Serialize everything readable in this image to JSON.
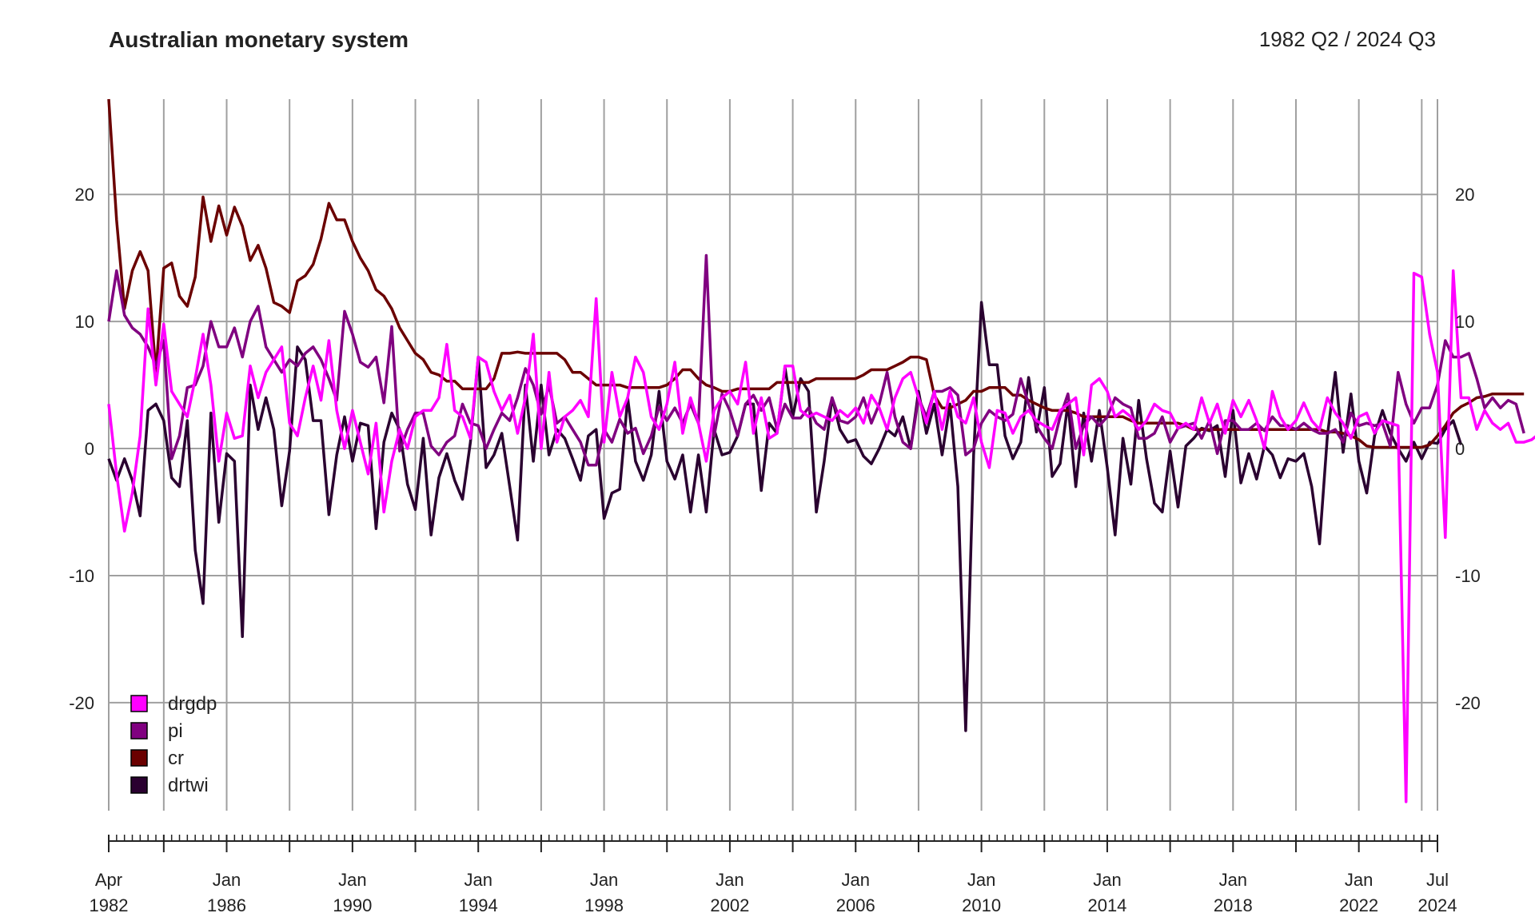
{
  "header": {
    "title": "Australian monetary system",
    "period": "1982 Q2 / 2024 Q3"
  },
  "chart_data": {
    "type": "line",
    "title": "Australian monetary system",
    "subtitle": "1982 Q2 / 2024 Q3",
    "frequency": "quarterly",
    "start": "1982-04",
    "end": "2024-07",
    "ylim": [
      -28.5,
      27.5
    ],
    "yticks": [
      -20,
      -10,
      0,
      10,
      20
    ],
    "y_axis_both_sides": true,
    "grid": true,
    "legend_position": "bottom-left",
    "x_tick_labels": [
      {
        "month": "Apr",
        "year": "1982",
        "date": "1982-04"
      },
      {
        "month": "Jan",
        "year": "1986",
        "date": "1986-01"
      },
      {
        "month": "Jan",
        "year": "1990",
        "date": "1990-01"
      },
      {
        "month": "Jan",
        "year": "1994",
        "date": "1994-01"
      },
      {
        "month": "Jan",
        "year": "1998",
        "date": "1998-01"
      },
      {
        "month": "Jan",
        "year": "2002",
        "date": "2002-01"
      },
      {
        "month": "Jan",
        "year": "2006",
        "date": "2006-01"
      },
      {
        "month": "Jan",
        "year": "2010",
        "date": "2010-01"
      },
      {
        "month": "Jan",
        "year": "2014",
        "date": "2014-01"
      },
      {
        "month": "Jan",
        "year": "2018",
        "date": "2018-01"
      },
      {
        "month": "Jan",
        "year": "2022",
        "date": "2022-01"
      },
      {
        "month": "Jul",
        "year": "2024",
        "date": "2024-07"
      }
    ],
    "series": [
      {
        "name": "drgdp",
        "color": "#ff00ff",
        "values": [
          3.5,
          -2,
          -6.5,
          -3.5,
          1,
          11,
          5,
          9.8,
          4.5,
          3.5,
          2.5,
          5.5,
          9,
          5,
          -1,
          2.8,
          0.8,
          1,
          6.5,
          4,
          6,
          7,
          8,
          2,
          1,
          4,
          6.5,
          3.8,
          8.5,
          3,
          0,
          3,
          0.5,
          -2,
          2,
          -5,
          -1,
          1.5,
          0,
          2.5,
          3,
          3,
          4,
          8.2,
          3,
          2.5,
          0.8,
          7.2,
          6.8,
          4.5,
          3,
          4.2,
          1.2,
          4,
          9,
          0,
          6,
          0.5,
          2.5,
          3,
          3.8,
          2.5,
          11.8,
          0.5,
          6,
          2.5,
          4,
          7.2,
          6,
          2.5,
          1.5,
          3.5,
          6.8,
          1.2,
          4,
          2,
          -1,
          3,
          4,
          4.5,
          3.5,
          6.8,
          1.2,
          4,
          0.8,
          1.2,
          6.5,
          6.5,
          3,
          2.5,
          2.8,
          2.5,
          2.2,
          3,
          2.5,
          3.2,
          2,
          4.2,
          3.2,
          1.5,
          4,
          5.5,
          6,
          4,
          2,
          4.5,
          1.5,
          4.5,
          2.5,
          2,
          4,
          0.5,
          -1.5,
          3,
          2.8,
          1.2,
          2.5,
          3,
          2.2,
          1.8,
          1.5,
          3,
          3.5,
          4,
          -0.5,
          5,
          5.5,
          4.5,
          2.5,
          3,
          2.5,
          1.5,
          2.2,
          3.5,
          3,
          2.8,
          1.6,
          2,
          1.5,
          4,
          2,
          3.5,
          1.2,
          3.8,
          2.5,
          3.8,
          2.2,
          0,
          4.5,
          2.5,
          1.5,
          2.2,
          3.6,
          2.2,
          1.5,
          4,
          2.8,
          2,
          0.8,
          2.5,
          2.8,
          1.2,
          2.2,
          2,
          1.8,
          -27.8,
          13.8,
          13.5,
          9,
          6,
          -7,
          14,
          4,
          4,
          1.5,
          3,
          2,
          1.5,
          2,
          0.5,
          0.5,
          0.7,
          1.2
        ]
      },
      {
        "name": "pi",
        "color": "#800080",
        "values": [
          10,
          14,
          10.5,
          9.5,
          9,
          8,
          6.5,
          8.5,
          -0.8,
          1,
          4.8,
          5,
          6.5,
          10,
          8,
          8,
          9.5,
          7.2,
          10,
          11.2,
          8,
          7,
          6,
          7,
          6.5,
          7.5,
          8,
          7,
          5.5,
          3.8,
          10.8,
          9,
          6.8,
          6.4,
          7.2,
          3.6,
          9.6,
          -0.2,
          1.5,
          2.8,
          2.8,
          0.2,
          -0.5,
          0.5,
          1,
          3.5,
          2,
          1.8,
          0,
          1.5,
          2.8,
          2.2,
          4,
          6.3,
          5,
          2.7,
          5,
          2,
          2.5,
          1.5,
          0.5,
          -1.3,
          -1.3,
          1.5,
          0.5,
          2.3,
          1.2,
          1.6,
          -0.4,
          1,
          3.3,
          2.2,
          3.2,
          2,
          3.5,
          2,
          15.2,
          1,
          4.3,
          3,
          1,
          3.5,
          4.2,
          3,
          4,
          1.5,
          3.5,
          2.4,
          2.4,
          3.2,
          2,
          1.5,
          4,
          2.2,
          2,
          2.5,
          4,
          2,
          3.5,
          6,
          2.5,
          0.5,
          0,
          4,
          2.5,
          4.5,
          4.5,
          4.8,
          4.2,
          -0.5,
          0,
          2,
          3,
          2.5,
          2.2,
          2.7,
          5.5,
          3.5,
          1.8,
          0.8,
          0,
          2.5,
          4.3,
          0,
          1.8,
          2.5,
          1.8,
          2.5,
          4,
          3.5,
          3.2,
          0.8,
          0.8,
          1.2,
          2.5,
          0.5,
          1.6,
          1.8,
          2,
          0.8,
          2.2,
          -0.4,
          2.2,
          2.2,
          1.5,
          1.5,
          2,
          1.4,
          2.5,
          1.8,
          1.8,
          1.5,
          2,
          1.5,
          1.2,
          1.2,
          1.5,
          0.5,
          2.8,
          1.8,
          2,
          1.8,
          2,
          0.2,
          6,
          3.5,
          2,
          3.2,
          3.2,
          5,
          8.5,
          7.2,
          7.2,
          7.5,
          5.5,
          3.2,
          4,
          3.2,
          3.8,
          3.5,
          1.2
        ]
      },
      {
        "name": "cr",
        "color": "#6b0000",
        "values": [
          27.5,
          18,
          11,
          14,
          15.5,
          14,
          6,
          14.2,
          14.6,
          12,
          11.2,
          13.5,
          19.8,
          16.3,
          19.1,
          16.8,
          19,
          17.5,
          14.8,
          16,
          14.2,
          11.5,
          11.2,
          10.7,
          13.2,
          13.6,
          14.5,
          16.5,
          19.3,
          18,
          18,
          16.3,
          15,
          14,
          12.5,
          12,
          11,
          9.5,
          8.5,
          7.5,
          7,
          6,
          5.8,
          5.3,
          5.3,
          4.7,
          4.7,
          4.7,
          4.7,
          5.5,
          7.5,
          7.5,
          7.6,
          7.5,
          7.5,
          7.5,
          7.5,
          7.5,
          7,
          6,
          6,
          5.5,
          5,
          5,
          5,
          5,
          4.8,
          4.8,
          4.8,
          4.8,
          4.8,
          5,
          5.5,
          6.2,
          6.2,
          5.5,
          5,
          4.8,
          4.5,
          4.5,
          4.7,
          4.7,
          4.7,
          4.7,
          4.7,
          5.2,
          5.2,
          5.2,
          5.2,
          5.2,
          5.5,
          5.5,
          5.5,
          5.5,
          5.5,
          5.5,
          5.8,
          6.2,
          6.2,
          6.2,
          6.5,
          6.8,
          7.2,
          7.2,
          7,
          4.2,
          3.2,
          3.2,
          3.5,
          3.8,
          4.5,
          4.5,
          4.8,
          4.8,
          4.8,
          4.2,
          4.2,
          3.8,
          3.5,
          3.2,
          3,
          3,
          3,
          2.8,
          2.5,
          2.5,
          2.5,
          2.5,
          2.5,
          2.5,
          2.2,
          2,
          2,
          2,
          2,
          2,
          2,
          1.8,
          1.5,
          1.5,
          1.5,
          1.5,
          1.5,
          1.5,
          1.5,
          1.5,
          1.5,
          1.5,
          1.5,
          1.5,
          1.5,
          1.5,
          1.5,
          1.5,
          1.5,
          1.3,
          1.3,
          1.2,
          1,
          0.7,
          0.2,
          0.1,
          0.1,
          0.1,
          0.1,
          0.1,
          0.1,
          0.1,
          0.3,
          1,
          1.8,
          2.8,
          3.3,
          3.6,
          4,
          4.1,
          4.3,
          4.3,
          4.3,
          4.3,
          4.3
        ]
      },
      {
        "name": "drtwi",
        "color": "#2a0030",
        "values": [
          -0.8,
          -2.5,
          -0.8,
          -2.5,
          -5.3,
          3,
          3.5,
          2.2,
          -2.3,
          -3,
          2.2,
          -8,
          -12.2,
          2.8,
          -5.8,
          -0.4,
          -1,
          -14.8,
          5,
          1.5,
          4,
          1.5,
          -4.5,
          -0.2,
          8,
          7,
          2.2,
          2.2,
          -5.2,
          -0.5,
          2.5,
          -1,
          2,
          1.8,
          -6.3,
          0.5,
          2.8,
          1.5,
          -2.8,
          -4.8,
          0.8,
          -6.8,
          -2.3,
          -0.4,
          -2.5,
          -4,
          0.5,
          7.2,
          -1.5,
          -0.5,
          1.2,
          -3,
          -7.2,
          5,
          -1,
          5,
          -0.5,
          1.5,
          0.8,
          -0.8,
          -2.5,
          1,
          1.5,
          -5.5,
          -3.5,
          -3.2,
          4,
          -1,
          -2.5,
          -0.5,
          4.5,
          -1,
          -2.4,
          -0.5,
          -5,
          -0.5,
          -5,
          1.5,
          -0.5,
          -0.3,
          1,
          3.5,
          3.5,
          -3.3,
          2,
          1.2,
          6.4,
          2.5,
          5.5,
          4.5,
          -5,
          -1,
          4,
          1.5,
          0.5,
          0.7,
          -0.6,
          -1.2,
          0,
          1.5,
          1,
          2.5,
          0,
          4.5,
          1.2,
          3.5,
          -0.5,
          3.5,
          -3,
          -22.2,
          -0.5,
          11.5,
          6.6,
          6.6,
          1,
          -0.8,
          0.5,
          5.6,
          1.3,
          4.8,
          -2.2,
          -1.2,
          3.6,
          -3,
          2.8,
          -1,
          3,
          -1.5,
          -6.8,
          0.8,
          -2.8,
          3.8,
          -0.8,
          -4.3,
          -5,
          -0.2,
          -4.6,
          0.2,
          0.8,
          1.6,
          1.4,
          1.8,
          -2.2,
          3,
          -2.7,
          -0.4,
          -2.4,
          0.2,
          -0.5,
          -2.3,
          -0.8,
          -1,
          -0.4,
          -3,
          -7.5,
          1,
          6,
          -0.3,
          4.3,
          -1,
          -3.5,
          1,
          3,
          1.2,
          0,
          -1,
          0.5,
          -0.8,
          0.5,
          0.4,
          1.5,
          2.2,
          0.3
        ]
      }
    ]
  }
}
